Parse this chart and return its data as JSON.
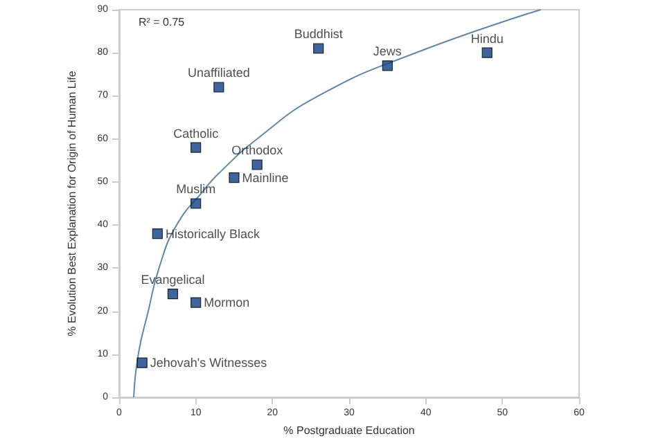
{
  "chart_data": {
    "type": "scatter",
    "xlabel": "% Postgraduate Education",
    "ylabel": "% Evolution Best Explanation for Origin of Human Life",
    "xlim": [
      0,
      60
    ],
    "xticks": [
      0,
      10,
      20,
      30,
      40,
      50,
      60
    ],
    "ylim": [
      0,
      90
    ],
    "yticks": [
      0,
      10,
      20,
      30,
      40,
      50,
      60,
      70,
      80,
      90
    ],
    "grid": false,
    "legend": false,
    "marker": "square",
    "annotations": [
      "R² = 0.75"
    ],
    "series": [
      {
        "name": "Buddhist",
        "color": "#0f3f87",
        "x": [
          26
        ],
        "values": [
          81
        ]
      },
      {
        "name": "Jews",
        "color": "#0f3f87",
        "x": [
          35
        ],
        "values": [
          77
        ]
      },
      {
        "name": "Hindu",
        "color": "#0f3f87",
        "x": [
          48
        ],
        "values": [
          80
        ]
      },
      {
        "name": "Unaffiliated",
        "color": "#0f3f87",
        "x": [
          13
        ],
        "values": [
          72
        ]
      },
      {
        "name": "Catholic",
        "color": "#0f3f87",
        "x": [
          10
        ],
        "values": [
          58
        ]
      },
      {
        "name": "Orthodox",
        "color": "#0f3f87",
        "x": [
          18
        ],
        "values": [
          54
        ]
      },
      {
        "name": "Mainline",
        "color": "#0f3f87",
        "x": [
          15
        ],
        "values": [
          51
        ]
      },
      {
        "name": "Muslim",
        "color": "#0f3f87",
        "x": [
          10
        ],
        "values": [
          45
        ]
      },
      {
        "name": "Historically Black",
        "color": "#0f3f87",
        "x": [
          5
        ],
        "values": [
          38
        ]
      },
      {
        "name": "Evangelical",
        "color": "#0f3f87",
        "x": [
          7
        ],
        "values": [
          24
        ]
      },
      {
        "name": "Mormon",
        "color": "#0f3f87",
        "x": [
          10
        ],
        "values": [
          22
        ]
      },
      {
        "name": "Jehovah's Witnesses",
        "color": "#0f3f87",
        "x": [
          3
        ],
        "values": [
          8
        ]
      },
      {
        "type": "line",
        "color": "#5b87ad",
        "marker": "none",
        "x": [
          1.9,
          2.5,
          3.8,
          5.2,
          7.5,
          11,
          13,
          18,
          26,
          38.7,
          55
        ],
        "values": [
          0,
          10,
          20,
          30,
          40,
          48,
          52,
          60,
          70,
          80,
          90
        ]
      }
    ]
  }
}
